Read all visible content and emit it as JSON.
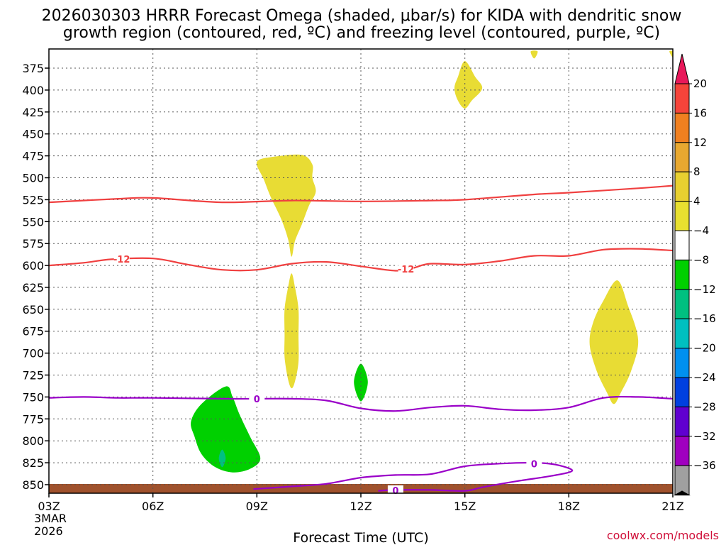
{
  "chart_data": {
    "type": "time-height cross-section",
    "title_line1": "2026030303 HRRR Forecast Omega (shaded, μbar/s) for KIDA with dendritic snow",
    "title_line2": "growth region (contoured, red, ºC) and freezing level (contoured, purple, ºC)",
    "xlabel": "Forecast Time (UTC)",
    "date_label": [
      "3MAR",
      "2026"
    ],
    "credit": "coolwx.com/models",
    "x_hours": [
      3,
      21
    ],
    "y_pressure_hpa": [
      862,
      356
    ],
    "x_ticks": [
      {
        "hour": 3,
        "label": "03Z"
      },
      {
        "hour": 6,
        "label": "06Z"
      },
      {
        "hour": 9,
        "label": "09Z"
      },
      {
        "hour": 12,
        "label": "12Z"
      },
      {
        "hour": 15,
        "label": "15Z"
      },
      {
        "hour": 18,
        "label": "18Z"
      },
      {
        "hour": 21,
        "label": "21Z"
      }
    ],
    "y_ticks": [
      375,
      400,
      425,
      450,
      475,
      500,
      525,
      550,
      575,
      600,
      625,
      650,
      675,
      700,
      725,
      750,
      775,
      800,
      825,
      850
    ],
    "colorbar": {
      "labels": [
        "20",
        "16",
        "12",
        "8",
        "4",
        "−4",
        "−8",
        "−12",
        "−16",
        "−20",
        "−24",
        "−28",
        "−32",
        "−36"
      ],
      "colors": [
        "#e8185a",
        "#f5443a",
        "#f08020",
        "#e8a830",
        "#e8d030",
        "#e8e030",
        "#ffffff",
        "#00d000",
        "#00c080",
        "#00c0c0",
        "#0090f0",
        "#0040e0",
        "#6000d0",
        "#a000c0",
        "#a0a0a0",
        "#000000"
      ]
    },
    "dgz_top": {
      "color": "#f04040",
      "points": [
        [
          3,
          528
        ],
        [
          5,
          524
        ],
        [
          6,
          523
        ],
        [
          8,
          528
        ],
        [
          10,
          526
        ],
        [
          12,
          527
        ],
        [
          14,
          526
        ],
        [
          15,
          525
        ],
        [
          17,
          519
        ],
        [
          18,
          517
        ],
        [
          20,
          512
        ],
        [
          21,
          509
        ]
      ]
    },
    "dgz_bottom": {
      "color": "#f04040",
      "label": "-12",
      "label_hours": [
        5.1,
        13.3
      ],
      "points": [
        [
          3,
          600
        ],
        [
          4,
          597
        ],
        [
          4.8,
          593
        ],
        [
          6,
          592
        ],
        [
          7,
          599
        ],
        [
          8,
          605
        ],
        [
          9,
          605
        ],
        [
          10,
          598
        ],
        [
          11,
          596
        ],
        [
          12,
          601
        ],
        [
          13,
          606
        ],
        [
          13.5,
          603
        ],
        [
          14,
          598
        ],
        [
          15,
          599
        ],
        [
          16,
          595
        ],
        [
          17,
          589
        ],
        [
          18,
          589
        ],
        [
          19,
          582
        ],
        [
          20,
          581
        ],
        [
          21,
          583
        ]
      ]
    },
    "freezing_level": {
      "color": "#9a00c8",
      "label": "0",
      "label_hours": [
        9,
        13,
        17
      ],
      "upper": [
        [
          3,
          751
        ],
        [
          4,
          750
        ],
        [
          5,
          751
        ],
        [
          6,
          751
        ],
        [
          8,
          752
        ],
        [
          9,
          752
        ],
        [
          10,
          752
        ],
        [
          11,
          754
        ],
        [
          12,
          763
        ],
        [
          13,
          766
        ],
        [
          14,
          762
        ],
        [
          15,
          760
        ],
        [
          16,
          764
        ],
        [
          17,
          765
        ],
        [
          18,
          762
        ],
        [
          19,
          751
        ],
        [
          20,
          750
        ],
        [
          21,
          752
        ]
      ],
      "lower_loop": [
        [
          8.9,
          855
        ],
        [
          10,
          852
        ],
        [
          11,
          849
        ],
        [
          12,
          842
        ],
        [
          13,
          839
        ],
        [
          14,
          838
        ],
        [
          15,
          829
        ],
        [
          16,
          826
        ],
        [
          17,
          825
        ],
        [
          17.6,
          827
        ],
        [
          18.1,
          834
        ],
        [
          17.5,
          840
        ],
        [
          16.5,
          846
        ],
        [
          15.5,
          853
        ],
        [
          15,
          857
        ],
        [
          14,
          856
        ],
        [
          13,
          856
        ],
        [
          12.5,
          857
        ]
      ]
    },
    "omega_shaded": [
      {
        "value_range": "4 to 8",
        "color": "#e8dc34",
        "points": [
          [
            15,
            367
          ],
          [
            15.3,
            385
          ],
          [
            15.5,
            398
          ],
          [
            15.2,
            412
          ],
          [
            15,
            421
          ],
          [
            14.8,
            412
          ],
          [
            14.7,
            398
          ],
          [
            14.8,
            385
          ]
        ]
      },
      {
        "value_range": "4 to 8",
        "color": "#e8dc34",
        "points": [
          [
            9,
            482
          ],
          [
            9.5,
            476
          ],
          [
            10.3,
            474
          ],
          [
            10.6,
            485
          ],
          [
            10.6,
            500
          ],
          [
            10.7,
            516
          ],
          [
            10.5,
            532
          ],
          [
            10.3,
            553
          ],
          [
            10.1,
            572
          ],
          [
            10,
            590
          ],
          [
            9.9,
            570
          ],
          [
            9.7,
            547
          ],
          [
            9.4,
            522
          ],
          [
            9.2,
            502
          ]
        ]
      },
      {
        "value_range": "4 to 8",
        "color": "#e8dc34",
        "points": [
          [
            10,
            609
          ],
          [
            10.1,
            625
          ],
          [
            10.2,
            650
          ],
          [
            10.2,
            680
          ],
          [
            10.2,
            710
          ],
          [
            10.1,
            732
          ],
          [
            10,
            740
          ],
          [
            9.9,
            730
          ],
          [
            9.8,
            705
          ],
          [
            9.8,
            680
          ],
          [
            9.8,
            650
          ],
          [
            9.9,
            625
          ]
        ]
      },
      {
        "value_range": "4 to 8",
        "color": "#e8dc34",
        "points": [
          [
            19.4,
            617
          ],
          [
            19.7,
            645
          ],
          [
            20,
            685
          ],
          [
            19.8,
            720
          ],
          [
            19.5,
            745
          ],
          [
            19.3,
            758
          ],
          [
            19.1,
            745
          ],
          [
            18.8,
            720
          ],
          [
            18.6,
            690
          ],
          [
            18.7,
            665
          ],
          [
            19,
            640
          ]
        ]
      },
      {
        "value_range": "4 to 8",
        "color": "#e8dc34",
        "points": [
          [
            16.9,
            356
          ],
          [
            17.1,
            356
          ],
          [
            17,
            364
          ]
        ]
      },
      {
        "value_range": "4 to 8",
        "color": "#e8dc34",
        "points": [
          [
            20.9,
            356
          ],
          [
            21,
            356
          ],
          [
            21,
            363
          ]
        ]
      },
      {
        "value_range": "-4 to -8",
        "color": "#00d000",
        "points": [
          [
            8.1,
            738
          ],
          [
            8.3,
            750
          ],
          [
            8.5,
            770
          ],
          [
            8.8,
            795
          ],
          [
            9.1,
            820
          ],
          [
            8.8,
            832
          ],
          [
            8.3,
            836
          ],
          [
            7.8,
            830
          ],
          [
            7.4,
            815
          ],
          [
            7.2,
            795
          ],
          [
            7.1,
            778
          ],
          [
            7.4,
            758
          ]
        ]
      },
      {
        "value_range": "-8 to -12",
        "color": "#00c080",
        "points": [
          [
            8,
            810
          ],
          [
            8.1,
            820
          ],
          [
            8,
            830
          ],
          [
            7.9,
            820
          ]
        ]
      },
      {
        "value_range": "-4 to -8",
        "color": "#00d000",
        "points": [
          [
            12,
            712
          ],
          [
            12.2,
            733
          ],
          [
            12,
            755
          ],
          [
            11.8,
            733
          ]
        ]
      }
    ],
    "terrain": {
      "color": "#a0522d",
      "surface_hpa": 853
    }
  }
}
